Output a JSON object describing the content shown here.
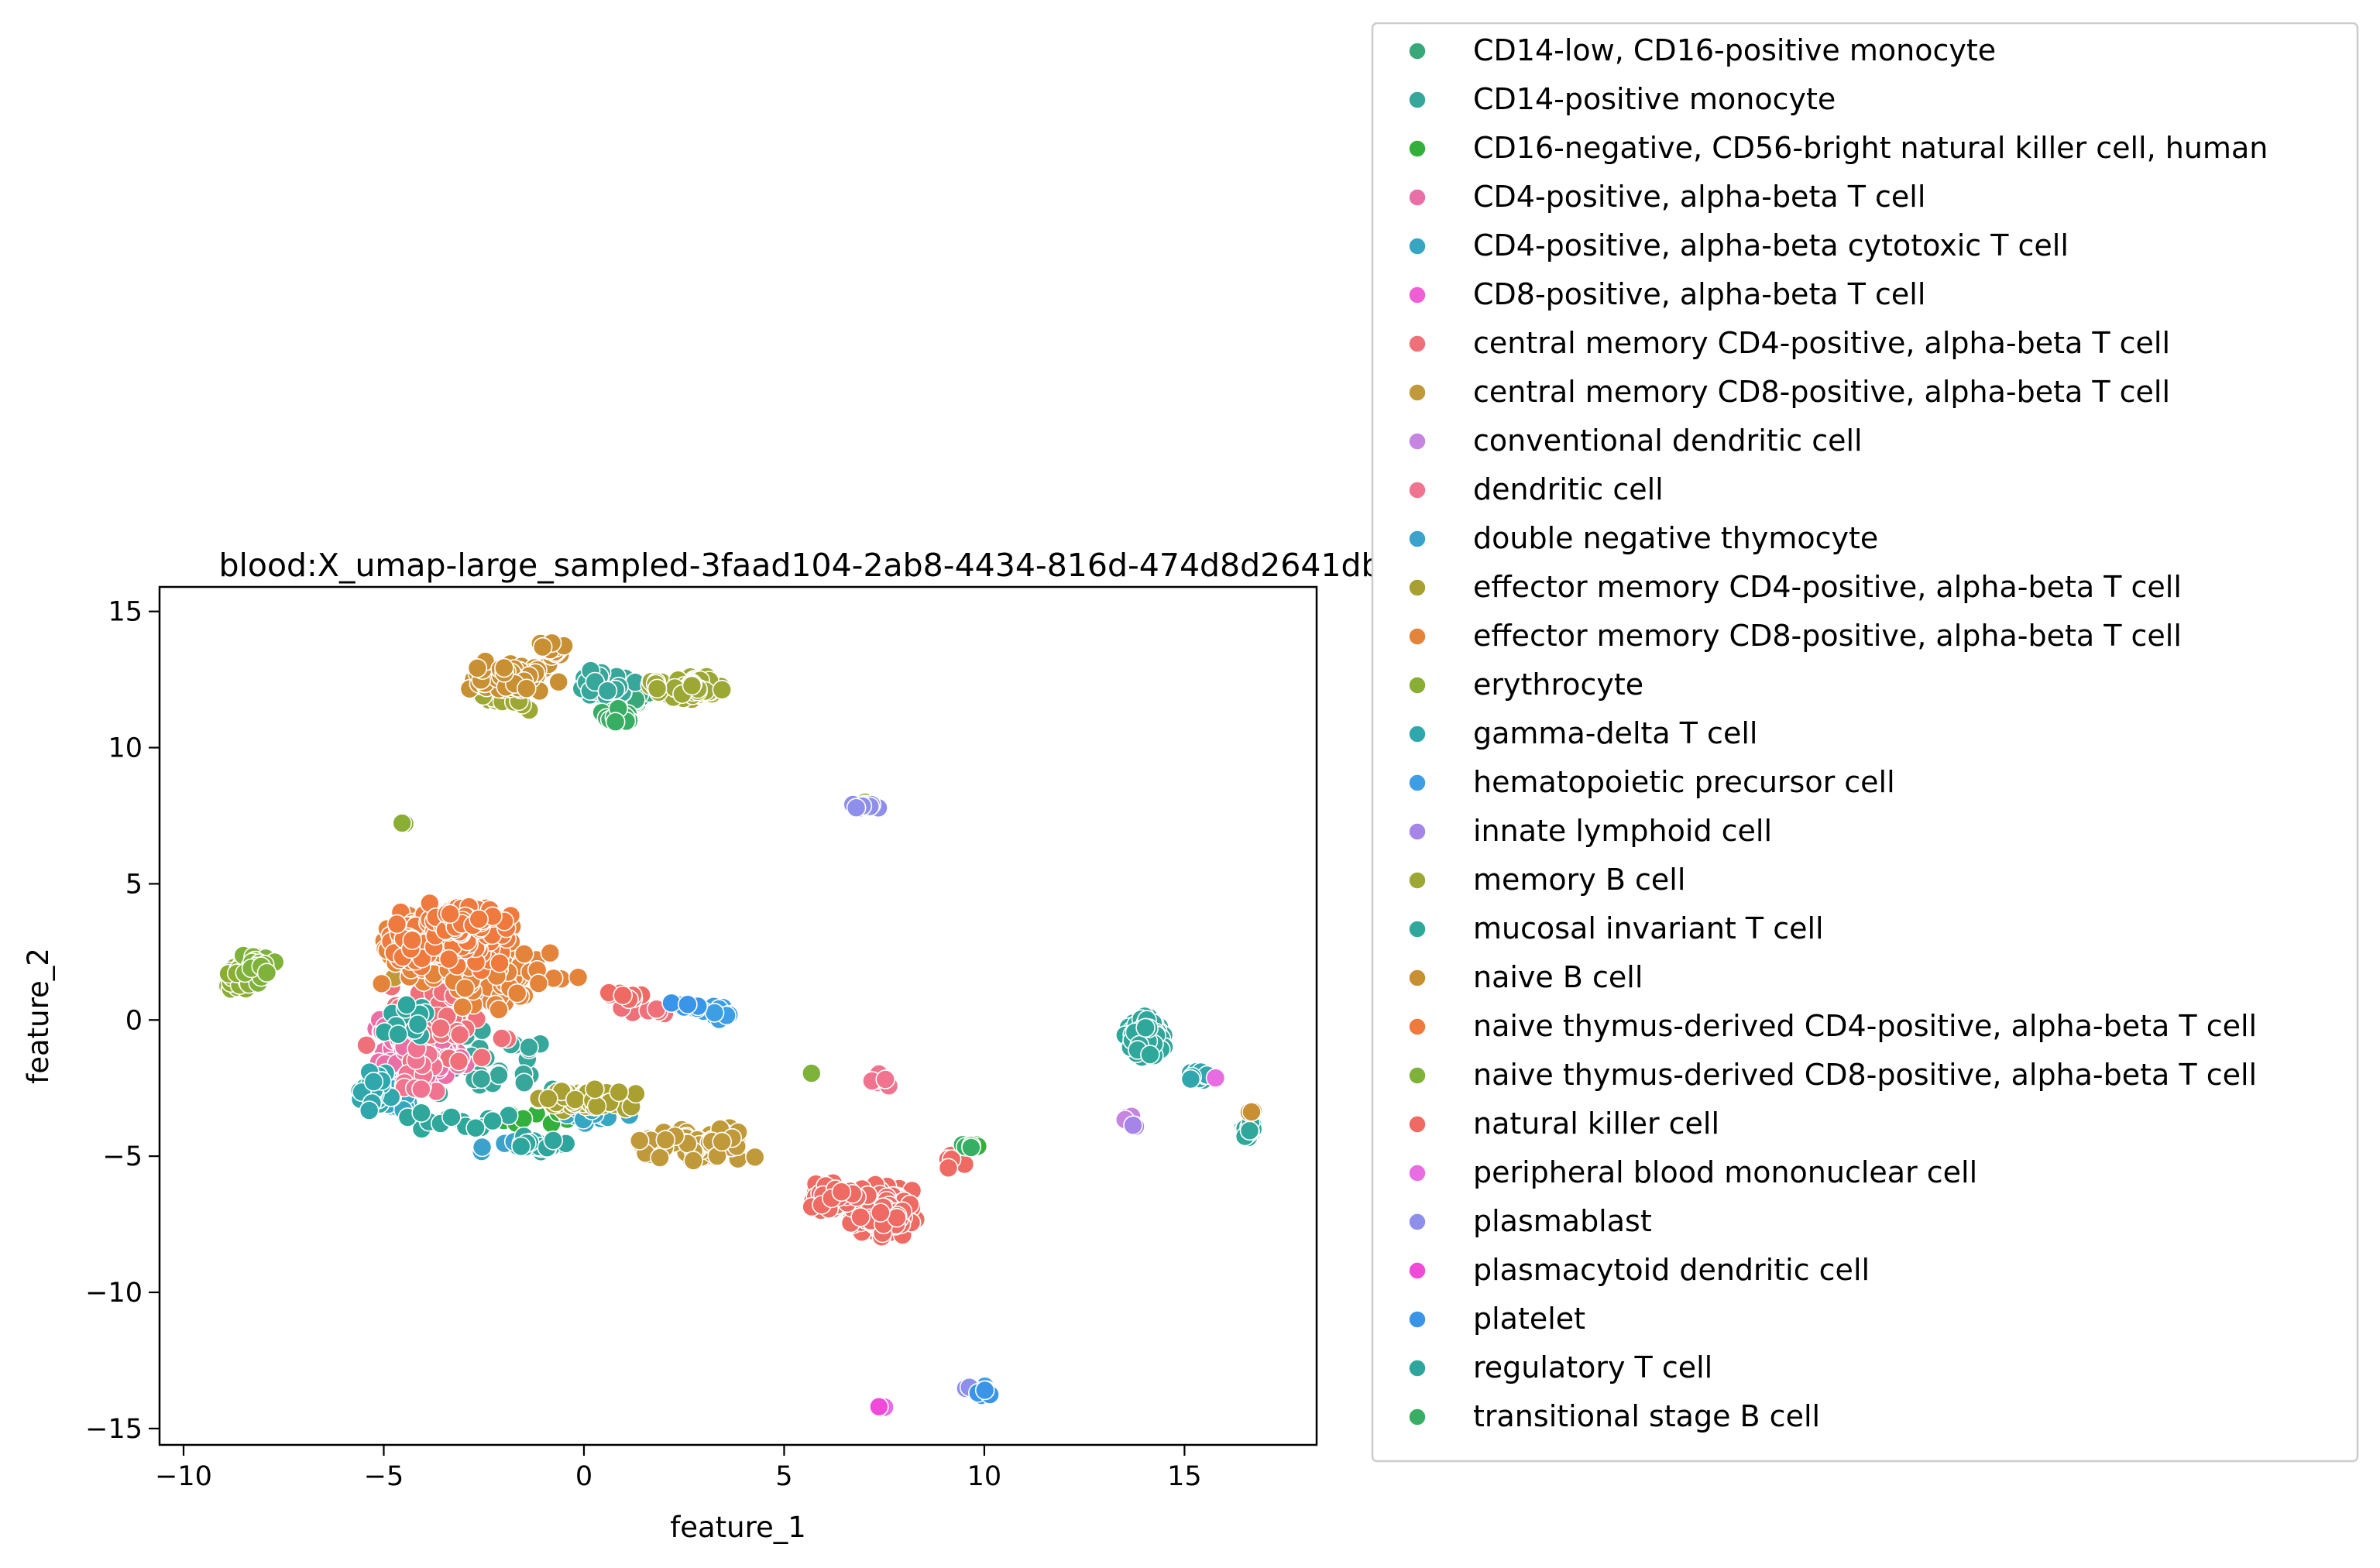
{
  "chart_data": {
    "type": "scatter",
    "title": "blood:X_umap-large_sampled-3faad104-2ab8-4434-816d-474d8d2641db",
    "xlabel": "feature_1",
    "ylabel": "feature_2",
    "xlim": [
      -10.6,
      18.3
    ],
    "ylim": [
      -15.6,
      15.9
    ],
    "xticks": [
      -10,
      -5,
      0,
      5,
      10,
      15
    ],
    "yticks": [
      -15,
      -10,
      -5,
      0,
      5,
      10,
      15
    ],
    "legend_position": "outside-right",
    "grid": false,
    "series": [
      {
        "name": "CD14-low, CD16-positive monocyte",
        "color": "#38a87a",
        "clusters": [
          [
            1.2,
            11.8,
            0.9,
            0.6,
            25
          ]
        ]
      },
      {
        "name": "CD14-positive monocyte",
        "color": "#36a79a",
        "clusters": [
          [
            0.5,
            12.2,
            1.3,
            0.8,
            50
          ],
          [
            14.0,
            -0.4,
            0.7,
            1.0,
            50
          ],
          [
            -2.0,
            -1.6,
            3.0,
            2.3,
            30
          ]
        ]
      },
      {
        "name": "CD16-negative, CD56-bright natural killer cell, human",
        "color": "#33b03b",
        "clusters": [
          [
            9.8,
            -4.6,
            0.3,
            0.2,
            6
          ],
          [
            -1.5,
            -3.5,
            2.0,
            0.6,
            10
          ]
        ]
      },
      {
        "name": "CD4-positive, alpha-beta T cell",
        "color": "#ea6fa6",
        "clusters": [
          [
            -4.2,
            -1.0,
            1.6,
            2.0,
            220
          ]
        ]
      },
      {
        "name": "CD4-positive, alpha-beta cytotoxic T cell",
        "color": "#37a6c2",
        "clusters": [
          [
            -4.8,
            -2.9,
            1.0,
            0.8,
            25
          ],
          [
            0.2,
            -3.5,
            1.6,
            0.6,
            25
          ]
        ]
      },
      {
        "name": "CD8-positive, alpha-beta T cell",
        "color": "#ee5fd6",
        "clusters": [
          [
            -3.2,
            0.6,
            1.8,
            2.0,
            20
          ]
        ]
      },
      {
        "name": "central memory CD4-positive, alpha-beta T cell",
        "color": "#f0707a",
        "clusters": [
          [
            -3.5,
            0.3,
            2.6,
            2.8,
            60
          ],
          [
            1.6,
            0.4,
            0.9,
            0.4,
            8
          ]
        ]
      },
      {
        "name": "central memory CD8-positive, alpha-beta T cell",
        "color": "#c09a3a",
        "clusters": [
          [
            2.8,
            -4.6,
            2.6,
            0.9,
            100
          ],
          [
            -3.8,
            2.5,
            2.0,
            1.5,
            30
          ]
        ]
      },
      {
        "name": "conventional dendritic cell",
        "color": "#c685e0",
        "clusters": [
          [
            13.6,
            -3.7,
            0.2,
            0.3,
            10
          ]
        ]
      },
      {
        "name": "dendritic cell",
        "color": "#f07490",
        "clusters": [
          [
            7.3,
            -2.2,
            0.7,
            0.5,
            8
          ],
          [
            -4.0,
            -2.0,
            1.5,
            1.5,
            20
          ]
        ]
      },
      {
        "name": "double negative thymocyte",
        "color": "#3aa2cb",
        "clusters": [
          [
            -2.0,
            -4.6,
            1.5,
            0.5,
            10
          ]
        ]
      },
      {
        "name": "effector memory CD4-positive, alpha-beta T cell",
        "color": "#a8a030",
        "clusters": [
          [
            0.0,
            -2.9,
            1.9,
            0.6,
            70
          ],
          [
            2.7,
            12.1,
            0.8,
            0.4,
            30
          ]
        ]
      },
      {
        "name": "effector memory CD8-positive, alpha-beta T cell",
        "color": "#e4843b",
        "clusters": [
          [
            -3.4,
            2.6,
            2.4,
            1.5,
            280
          ],
          [
            -2.2,
            1.4,
            2.6,
            2.2,
            60
          ]
        ]
      },
      {
        "name": "erythrocyte",
        "color": "#8aad33",
        "clusters": [
          [
            -8.6,
            1.5,
            0.5,
            0.8,
            50
          ],
          [
            -4.5,
            7.2,
            0.2,
            0.1,
            3
          ],
          [
            7.0,
            8.0,
            0.2,
            0.1,
            2
          ]
        ]
      },
      {
        "name": "gamma-delta T cell",
        "color": "#2fa7ac",
        "clusters": [
          [
            -5.2,
            -2.5,
            0.6,
            1.0,
            30
          ],
          [
            15.3,
            -2.0,
            0.6,
            0.5,
            12
          ]
        ]
      },
      {
        "name": "hematopoietic precursor cell",
        "color": "#3d9ee4",
        "clusters": [
          [
            3.3,
            0.3,
            0.7,
            0.6,
            10
          ],
          [
            10.0,
            -13.6,
            0.2,
            0.2,
            4
          ]
        ]
      },
      {
        "name": "innate lymphoid cell",
        "color": "#a585e8",
        "clusters": [
          [
            13.7,
            -3.9,
            0.2,
            0.2,
            3
          ]
        ]
      },
      {
        "name": "memory B cell",
        "color": "#9ca833",
        "clusters": [
          [
            2.5,
            12.2,
            1.4,
            0.6,
            120
          ],
          [
            -2.0,
            11.8,
            1.1,
            0.5,
            20
          ]
        ]
      },
      {
        "name": "mucosal invariant T cell",
        "color": "#2fa79b",
        "clusters": [
          [
            14.1,
            -0.6,
            0.7,
            1.1,
            60
          ],
          [
            16.6,
            -4.0,
            0.3,
            0.4,
            40
          ],
          [
            -3.0,
            -3.8,
            2.5,
            0.6,
            15
          ]
        ]
      },
      {
        "name": "naive B cell",
        "color": "#c88f33",
        "clusters": [
          [
            -1.8,
            12.6,
            1.4,
            0.8,
            150
          ],
          [
            -0.8,
            13.6,
            0.6,
            0.4,
            20
          ],
          [
            16.7,
            -3.4,
            0.2,
            0.1,
            3
          ]
        ]
      },
      {
        "name": "naive thymus-derived CD4-positive, alpha-beta T cell",
        "color": "#f07a3e",
        "clusters": [
          [
            -3.5,
            2.9,
            2.3,
            1.4,
            300
          ],
          [
            -2.8,
            3.6,
            1.8,
            1.0,
            80
          ]
        ]
      },
      {
        "name": "naive thymus-derived CD8-positive, alpha-beta T cell",
        "color": "#7fb23a",
        "clusters": [
          [
            -8.2,
            2.0,
            0.6,
            0.9,
            25
          ],
          [
            5.7,
            -2.0,
            0.1,
            0.1,
            1
          ]
        ]
      },
      {
        "name": "natural killer cell",
        "color": "#ef6a62",
        "clusters": [
          [
            7.5,
            -7.0,
            1.2,
            1.2,
            320
          ],
          [
            6.2,
            -6.6,
            1.2,
            0.8,
            50
          ],
          [
            1.0,
            0.9,
            0.9,
            0.3,
            10
          ],
          [
            9.2,
            -5.2,
            0.4,
            0.4,
            15
          ]
        ]
      },
      {
        "name": "peripheral blood mononuclear cell",
        "color": "#e86ce2",
        "clusters": [
          [
            15.8,
            -2.2,
            0.1,
            0.1,
            1
          ],
          [
            7.4,
            -14.2,
            0.2,
            0.1,
            2
          ]
        ]
      },
      {
        "name": "plasmablast",
        "color": "#8d8fea",
        "clusters": [
          [
            7.0,
            7.8,
            0.6,
            0.3,
            10
          ],
          [
            9.6,
            -13.5,
            0.2,
            0.2,
            3
          ]
        ]
      },
      {
        "name": "plasmacytoid dendritic cell",
        "color": "#f04ad8",
        "clusters": [
          [
            7.4,
            -14.2,
            0.2,
            0.1,
            2
          ]
        ]
      },
      {
        "name": "platelet",
        "color": "#3a95e8",
        "clusters": [
          [
            2.6,
            0.5,
            0.7,
            0.2,
            8
          ],
          [
            10.0,
            -13.7,
            0.3,
            0.2,
            6
          ]
        ]
      },
      {
        "name": "regulatory T cell",
        "color": "#2ea69e",
        "clusters": [
          [
            -1.0,
            -4.6,
            1.2,
            0.4,
            20
          ],
          [
            -4.5,
            0.0,
            1.2,
            1.0,
            15
          ]
        ]
      },
      {
        "name": "transitional stage B cell",
        "color": "#37ae63",
        "clusters": [
          [
            9.6,
            -4.6,
            0.3,
            0.2,
            6
          ],
          [
            0.8,
            11.2,
            0.9,
            0.5,
            20
          ]
        ]
      }
    ]
  }
}
